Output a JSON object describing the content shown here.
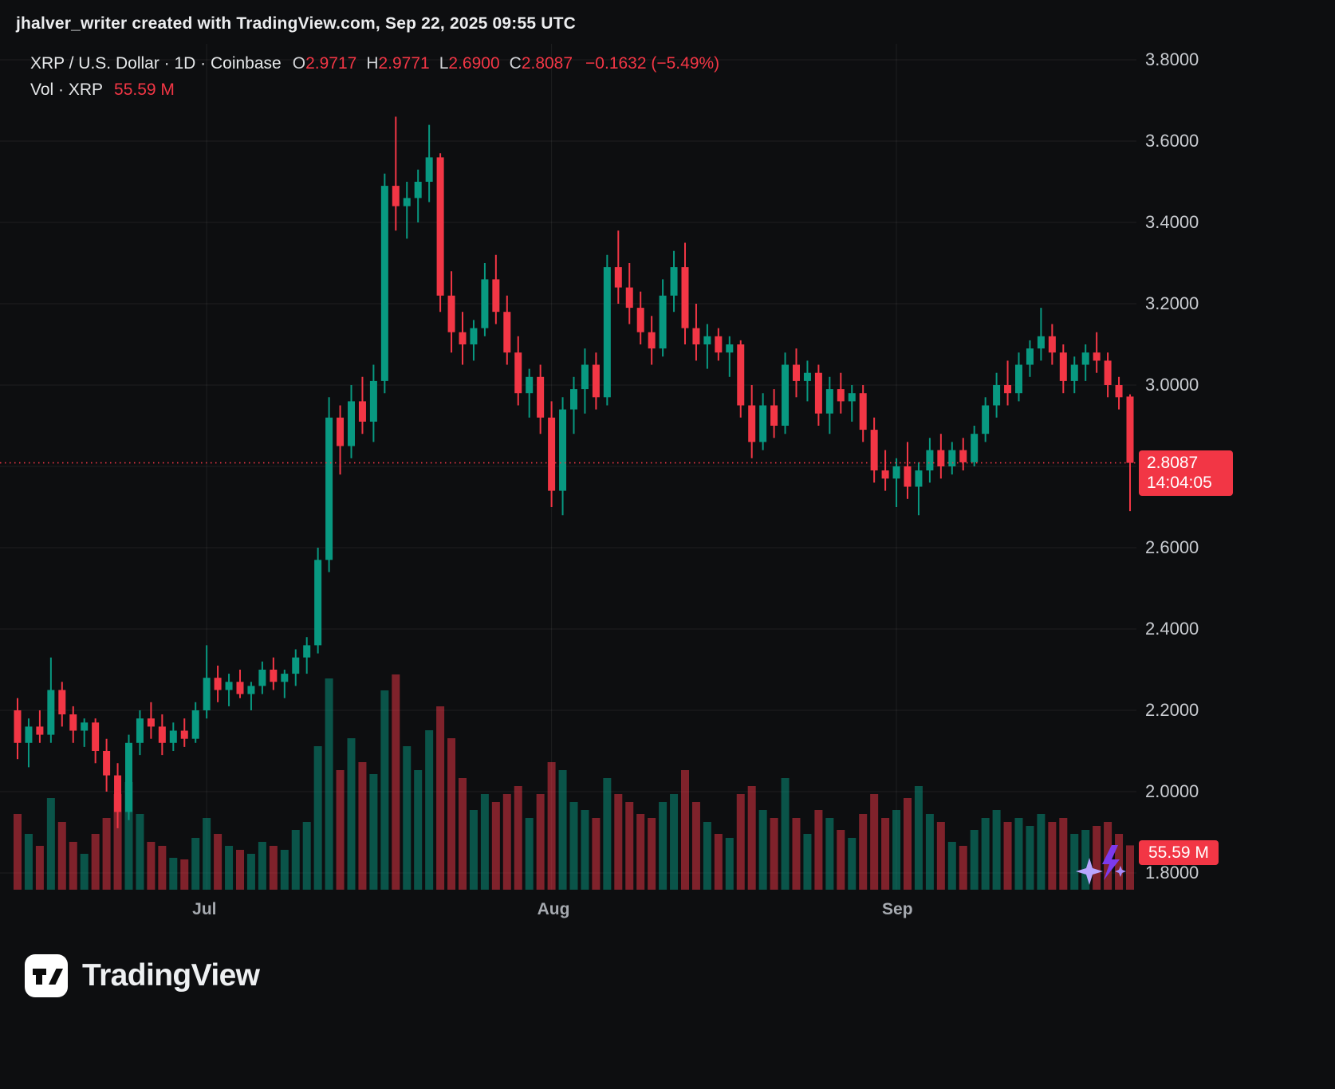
{
  "header": {
    "credit": "jhalver_writer created with TradingView.com, Sep 22, 2025 09:55 UTC"
  },
  "legend": {
    "symbol": "XRP / U.S. Dollar · 1D · Coinbase",
    "o_label": "O",
    "o_value": "2.9717",
    "h_label": "H",
    "h_value": "2.9771",
    "l_label": "L",
    "l_value": "2.6900",
    "c_label": "C",
    "c_value": "2.8087",
    "change": "−0.1632 (−5.49%)",
    "vol_title": "Vol · XRP",
    "vol_value": "55.59 M"
  },
  "badges": {
    "price": "2.8087",
    "countdown": "14:04:05",
    "volume": "55.59 M"
  },
  "footer": {
    "brand": "TradingView"
  },
  "colors": {
    "up": "#089981",
    "down": "#f23645",
    "accent_red": "#f23645",
    "sparkle_purple": "#8b5cf6",
    "sparkle_lavender": "#b9a6ff"
  },
  "chart_data": {
    "type": "candlestick",
    "title": "XRP / U.S. Dollar, 1D, Coinbase",
    "interval": "1D",
    "exchange": "Coinbase",
    "ylim": [
      1.8,
      3.8
    ],
    "grid_step": 0.2,
    "y_tick_labels": [
      "3.8000",
      "3.6000",
      "3.4000",
      "3.2000",
      "3.0000",
      "2.6000",
      "2.4000",
      "2.2000",
      "2.0000",
      "1.8000"
    ],
    "x_month_ticks": [
      {
        "index": 17,
        "label": "Jul"
      },
      {
        "index": 48,
        "label": "Aug"
      },
      {
        "index": 79,
        "label": "Sep"
      }
    ],
    "volume_unit": "millions XRP",
    "last": {
      "o": 2.9717,
      "h": 2.9771,
      "l": 2.69,
      "c": 2.8087,
      "change": -0.1632,
      "change_pct": -5.49,
      "volume_m": 55.59
    },
    "candle_fields": [
      "open",
      "high",
      "low",
      "close",
      "volume_millions"
    ],
    "candles": [
      [
        2.2,
        2.23,
        2.08,
        2.12,
        95
      ],
      [
        2.12,
        2.18,
        2.06,
        2.16,
        70
      ],
      [
        2.16,
        2.2,
        2.12,
        2.14,
        55
      ],
      [
        2.14,
        2.33,
        2.12,
        2.25,
        115
      ],
      [
        2.25,
        2.27,
        2.16,
        2.19,
        85
      ],
      [
        2.19,
        2.21,
        2.12,
        2.15,
        60
      ],
      [
        2.15,
        2.18,
        2.11,
        2.17,
        45
      ],
      [
        2.17,
        2.18,
        2.07,
        2.1,
        70
      ],
      [
        2.1,
        2.13,
        2.0,
        2.04,
        90
      ],
      [
        2.04,
        2.07,
        1.91,
        1.95,
        120
      ],
      [
        1.95,
        2.14,
        1.93,
        2.12,
        135
      ],
      [
        2.12,
        2.2,
        2.09,
        2.18,
        95
      ],
      [
        2.18,
        2.22,
        2.13,
        2.16,
        60
      ],
      [
        2.16,
        2.19,
        2.09,
        2.12,
        55
      ],
      [
        2.12,
        2.17,
        2.1,
        2.15,
        40
      ],
      [
        2.15,
        2.18,
        2.11,
        2.13,
        38
      ],
      [
        2.13,
        2.22,
        2.12,
        2.2,
        65
      ],
      [
        2.2,
        2.36,
        2.18,
        2.28,
        90
      ],
      [
        2.28,
        2.31,
        2.22,
        2.25,
        70
      ],
      [
        2.25,
        2.29,
        2.21,
        2.27,
        55
      ],
      [
        2.27,
        2.3,
        2.23,
        2.24,
        50
      ],
      [
        2.24,
        2.27,
        2.2,
        2.26,
        45
      ],
      [
        2.26,
        2.32,
        2.24,
        2.3,
        60
      ],
      [
        2.3,
        2.33,
        2.25,
        2.27,
        55
      ],
      [
        2.27,
        2.3,
        2.23,
        2.29,
        50
      ],
      [
        2.29,
        2.35,
        2.26,
        2.33,
        75
      ],
      [
        2.33,
        2.38,
        2.29,
        2.36,
        85
      ],
      [
        2.36,
        2.6,
        2.34,
        2.57,
        180
      ],
      [
        2.57,
        2.97,
        2.54,
        2.92,
        265
      ],
      [
        2.92,
        2.95,
        2.78,
        2.85,
        150
      ],
      [
        2.85,
        3.0,
        2.82,
        2.96,
        190
      ],
      [
        2.96,
        3.02,
        2.88,
        2.91,
        160
      ],
      [
        2.91,
        3.05,
        2.86,
        3.01,
        145
      ],
      [
        3.01,
        3.52,
        2.98,
        3.49,
        250
      ],
      [
        3.49,
        3.66,
        3.38,
        3.44,
        270
      ],
      [
        3.44,
        3.5,
        3.36,
        3.46,
        180
      ],
      [
        3.46,
        3.53,
        3.4,
        3.5,
        150
      ],
      [
        3.5,
        3.64,
        3.45,
        3.56,
        200
      ],
      [
        3.56,
        3.57,
        3.18,
        3.22,
        230
      ],
      [
        3.22,
        3.28,
        3.08,
        3.13,
        190
      ],
      [
        3.13,
        3.18,
        3.05,
        3.1,
        140
      ],
      [
        3.1,
        3.16,
        3.06,
        3.14,
        100
      ],
      [
        3.14,
        3.3,
        3.12,
        3.26,
        120
      ],
      [
        3.26,
        3.32,
        3.15,
        3.18,
        110
      ],
      [
        3.18,
        3.22,
        3.05,
        3.08,
        120
      ],
      [
        3.08,
        3.12,
        2.95,
        2.98,
        130
      ],
      [
        2.98,
        3.04,
        2.92,
        3.02,
        90
      ],
      [
        3.02,
        3.05,
        2.88,
        2.92,
        120
      ],
      [
        2.92,
        2.96,
        2.7,
        2.74,
        160
      ],
      [
        2.74,
        2.97,
        2.68,
        2.94,
        150
      ],
      [
        2.94,
        3.02,
        2.88,
        2.99,
        110
      ],
      [
        2.99,
        3.09,
        2.93,
        3.05,
        100
      ],
      [
        3.05,
        3.08,
        2.94,
        2.97,
        90
      ],
      [
        2.97,
        3.32,
        2.95,
        3.29,
        140
      ],
      [
        3.29,
        3.38,
        3.2,
        3.24,
        120
      ],
      [
        3.24,
        3.3,
        3.15,
        3.19,
        110
      ],
      [
        3.19,
        3.23,
        3.1,
        3.13,
        95
      ],
      [
        3.13,
        3.17,
        3.05,
        3.09,
        90
      ],
      [
        3.09,
        3.26,
        3.07,
        3.22,
        110
      ],
      [
        3.22,
        3.33,
        3.18,
        3.29,
        120
      ],
      [
        3.29,
        3.35,
        3.1,
        3.14,
        150
      ],
      [
        3.14,
        3.2,
        3.06,
        3.1,
        110
      ],
      [
        3.1,
        3.15,
        3.04,
        3.12,
        85
      ],
      [
        3.12,
        3.14,
        3.06,
        3.08,
        70
      ],
      [
        3.08,
        3.12,
        3.02,
        3.1,
        65
      ],
      [
        3.1,
        3.11,
        2.92,
        2.95,
        120
      ],
      [
        2.95,
        3.0,
        2.82,
        2.86,
        130
      ],
      [
        2.86,
        2.98,
        2.84,
        2.95,
        100
      ],
      [
        2.95,
        2.99,
        2.87,
        2.9,
        90
      ],
      [
        2.9,
        3.08,
        2.88,
        3.05,
        140
      ],
      [
        3.05,
        3.09,
        2.97,
        3.01,
        90
      ],
      [
        3.01,
        3.06,
        2.96,
        3.03,
        70
      ],
      [
        3.03,
        3.05,
        2.9,
        2.93,
        100
      ],
      [
        2.93,
        3.02,
        2.88,
        2.99,
        90
      ],
      [
        2.99,
        3.03,
        2.93,
        2.96,
        75
      ],
      [
        2.96,
        3.0,
        2.91,
        2.98,
        65
      ],
      [
        2.98,
        3.0,
        2.86,
        2.89,
        95
      ],
      [
        2.89,
        2.92,
        2.76,
        2.79,
        120
      ],
      [
        2.79,
        2.84,
        2.74,
        2.77,
        90
      ],
      [
        2.77,
        2.82,
        2.7,
        2.8,
        100
      ],
      [
        2.8,
        2.86,
        2.72,
        2.75,
        115
      ],
      [
        2.75,
        2.81,
        2.68,
        2.79,
        130
      ],
      [
        2.79,
        2.87,
        2.76,
        2.84,
        95
      ],
      [
        2.84,
        2.88,
        2.77,
        2.8,
        85
      ],
      [
        2.8,
        2.86,
        2.78,
        2.84,
        60
      ],
      [
        2.84,
        2.87,
        2.79,
        2.81,
        55
      ],
      [
        2.81,
        2.9,
        2.8,
        2.88,
        75
      ],
      [
        2.88,
        2.97,
        2.86,
        2.95,
        90
      ],
      [
        2.95,
        3.03,
        2.92,
        3.0,
        100
      ],
      [
        3.0,
        3.06,
        2.95,
        2.98,
        85
      ],
      [
        2.98,
        3.08,
        2.96,
        3.05,
        90
      ],
      [
        3.05,
        3.11,
        3.02,
        3.09,
        80
      ],
      [
        3.09,
        3.19,
        3.06,
        3.12,
        95
      ],
      [
        3.12,
        3.15,
        3.05,
        3.08,
        85
      ],
      [
        3.08,
        3.1,
        2.98,
        3.01,
        90
      ],
      [
        3.01,
        3.07,
        2.98,
        3.05,
        70
      ],
      [
        3.05,
        3.1,
        3.01,
        3.08,
        75
      ],
      [
        3.08,
        3.13,
        3.03,
        3.06,
        80
      ],
      [
        3.06,
        3.08,
        2.97,
        3.0,
        85
      ],
      [
        3.0,
        3.02,
        2.94,
        2.97,
        70
      ],
      [
        2.9717,
        2.9771,
        2.69,
        2.8087,
        55.59
      ]
    ]
  }
}
